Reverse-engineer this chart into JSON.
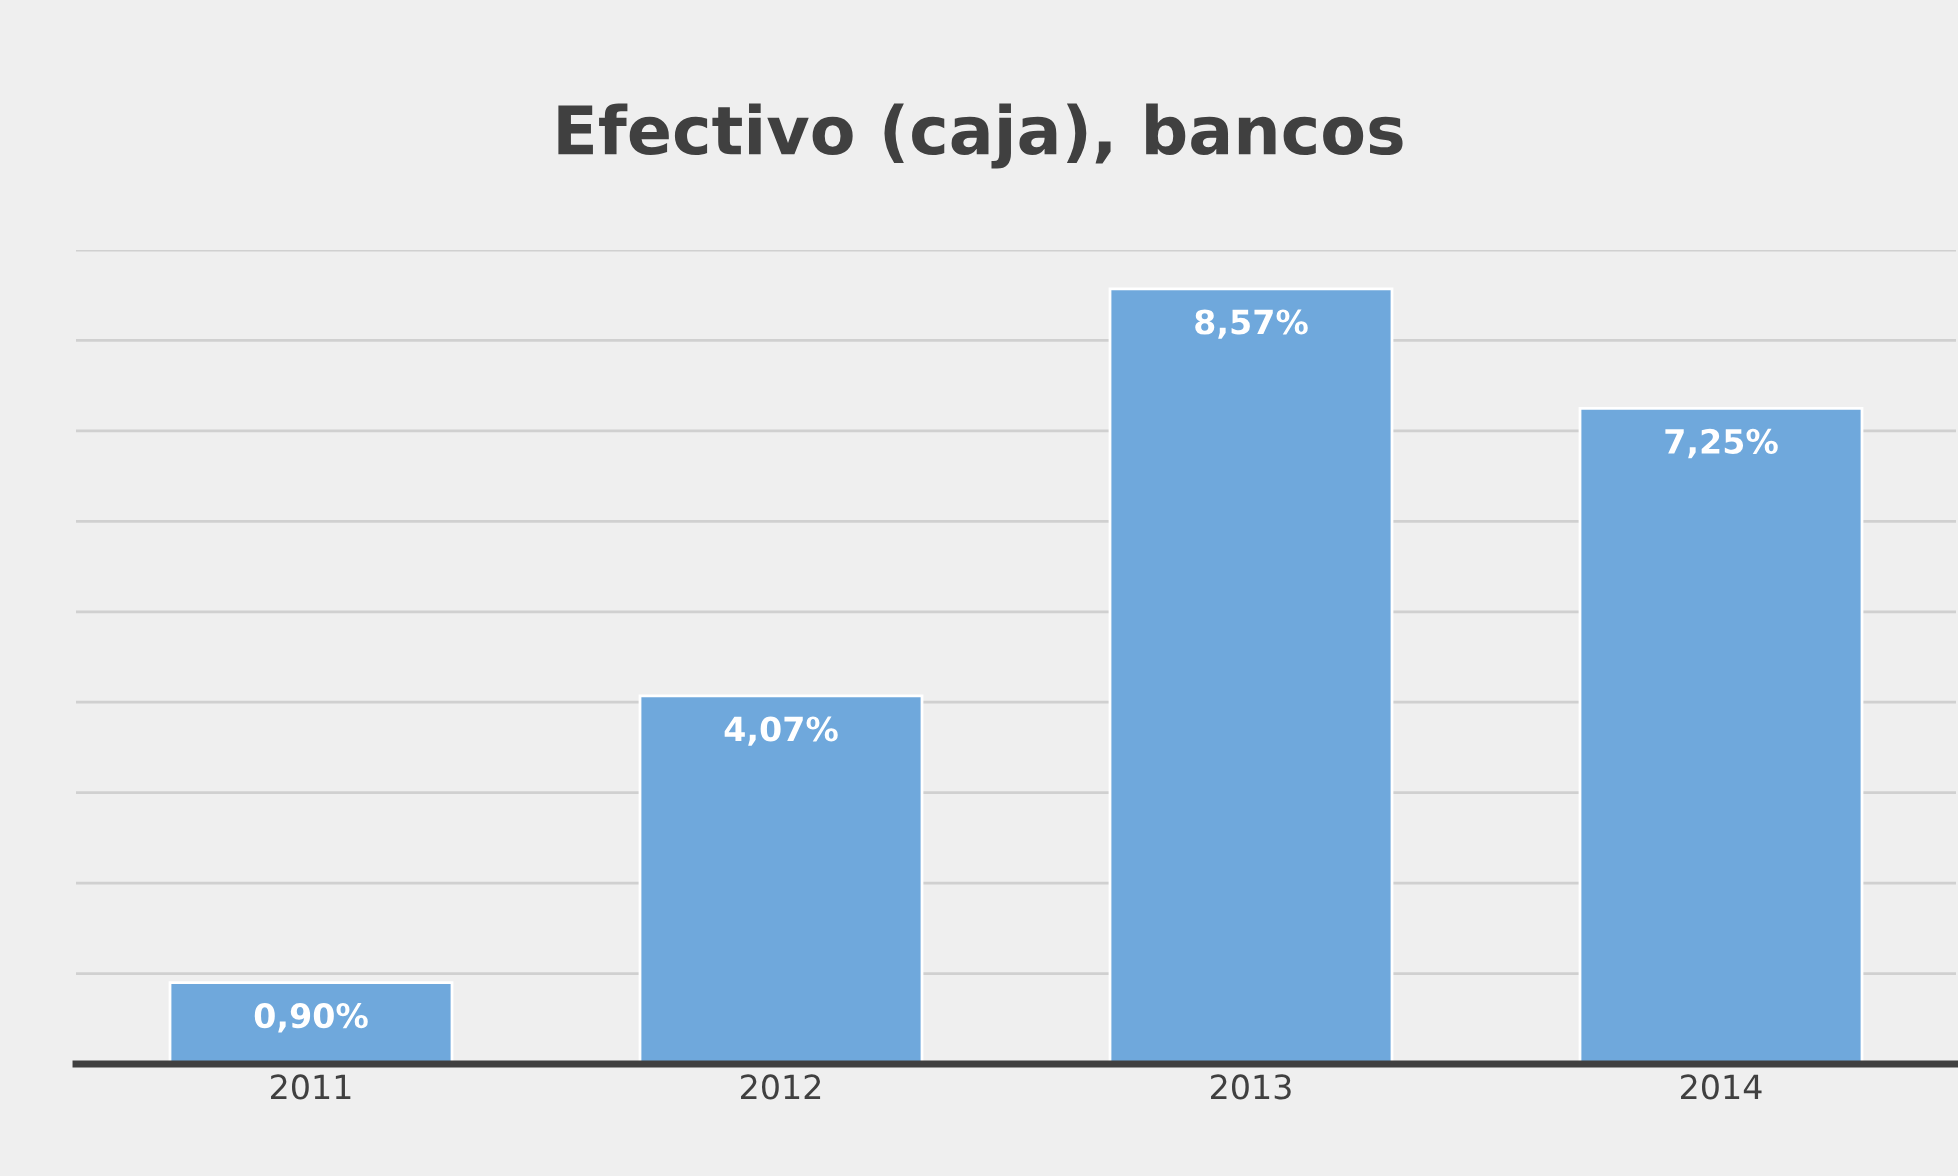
{
  "chart_data": {
    "type": "bar",
    "title": "Efectivo (caja), bancos",
    "categories": [
      "2011",
      "2012",
      "2013",
      "2014"
    ],
    "values": [
      0.9,
      4.07,
      8.57,
      7.25
    ],
    "value_labels": [
      "0,90%",
      "4,07%",
      "8,57%",
      "7,25%"
    ],
    "color": "#6fa8dc",
    "ylim": [
      0,
      9
    ],
    "yticks": [
      {
        "value": 0,
        "label": null
      },
      {
        "value": 1,
        "label": null
      },
      {
        "value": 2,
        "label": null
      },
      {
        "value": 3,
        "label": null
      },
      {
        "value": 4,
        "label": null
      },
      {
        "value": 5,
        "label": null
      },
      {
        "value": 6,
        "label": null
      },
      {
        "value": 7,
        "label": null
      },
      {
        "value": 8,
        "label": null
      },
      {
        "value": 9,
        "label": null
      }
    ],
    "tick_labels": "x",
    "grid": "y",
    "legend": false
  }
}
